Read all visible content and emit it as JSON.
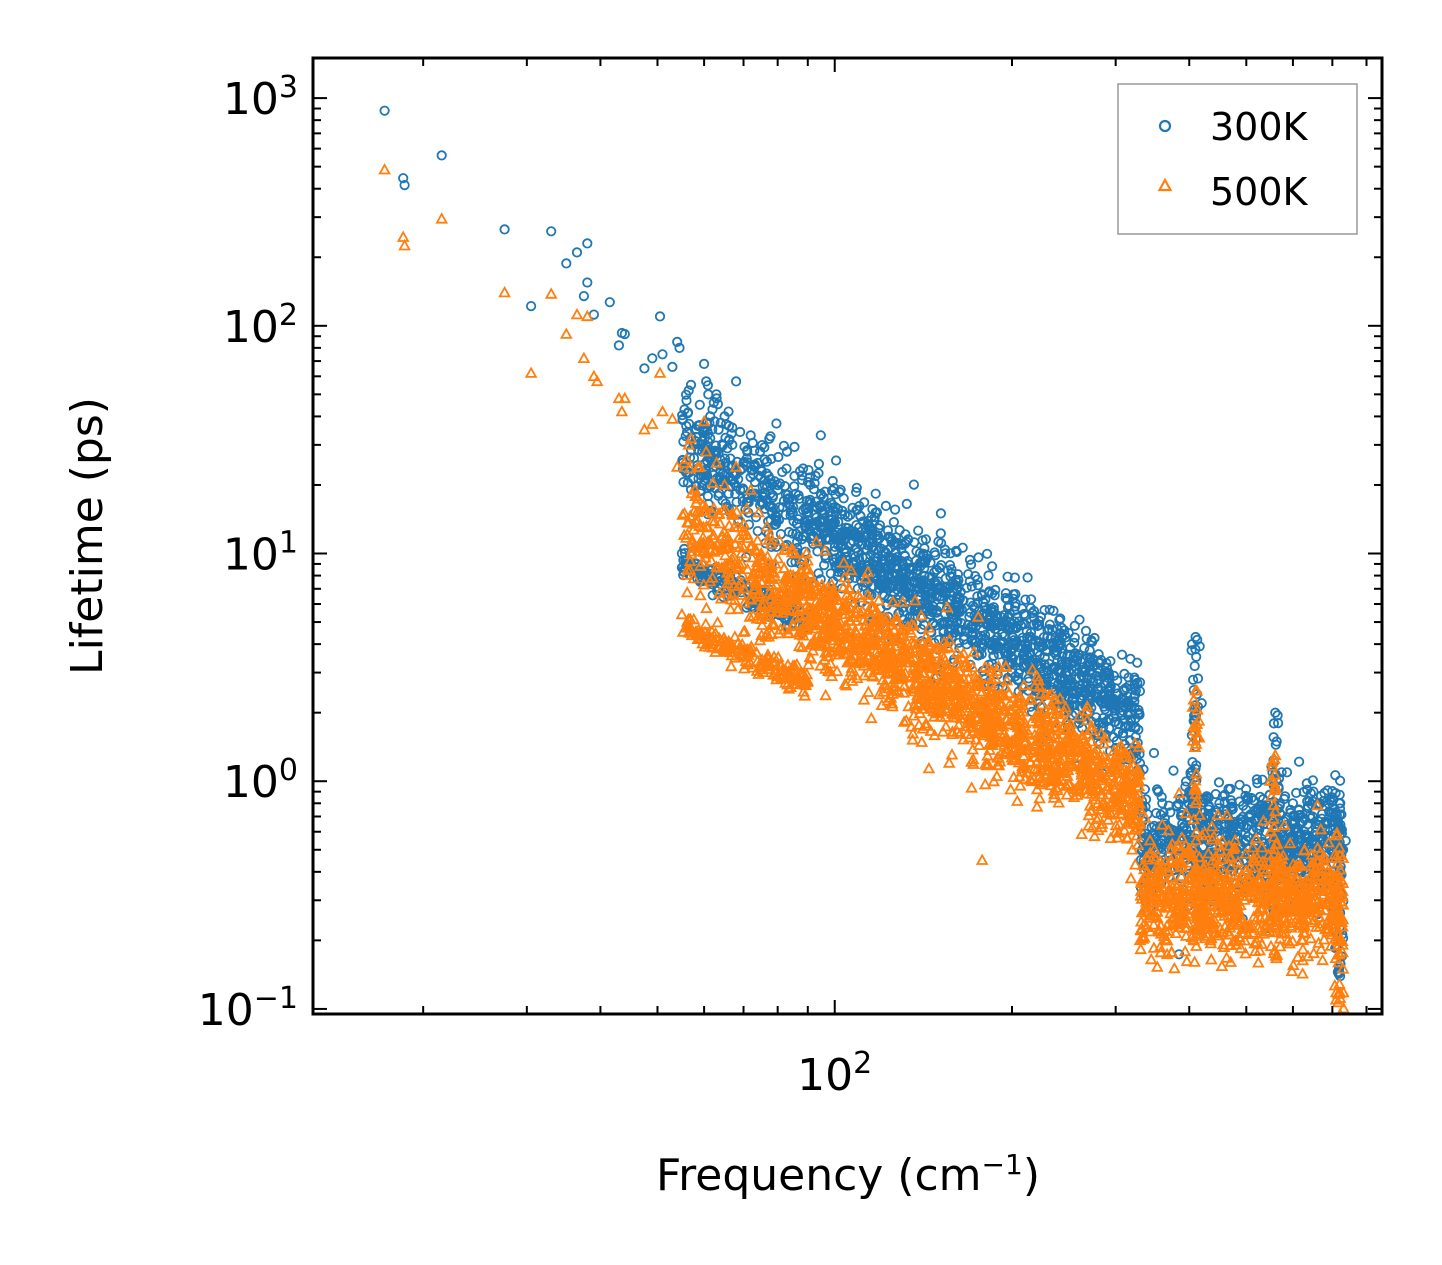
{
  "chart_data": {
    "type": "scatter",
    "title": "",
    "xlabel": "Frequency (cm",
    "xlabel_sup": "−1",
    "xlabel_tail": ")",
    "ylabel": "Lifetime (ps)",
    "xscale": "log",
    "yscale": "log",
    "xlim": [
      13,
      850
    ],
    "ylim": [
      0.095,
      1500
    ],
    "x_tick_labels": [
      {
        "value": 100,
        "base": "10",
        "exp": "2"
      }
    ],
    "y_tick_labels": [
      {
        "value": 0.1,
        "base": "10",
        "exp": "−1"
      },
      {
        "value": 1,
        "base": "10",
        "exp": "0"
      },
      {
        "value": 10,
        "base": "10",
        "exp": "1"
      },
      {
        "value": 100,
        "base": "10",
        "exp": "2"
      },
      {
        "value": 1000,
        "base": "10",
        "exp": "3"
      }
    ],
    "legend_position": "top-right",
    "series": [
      {
        "name": "300K",
        "marker": "circle",
        "color": "#1f77b4",
        "points": [
          [
            17.2,
            880
          ],
          [
            18.5,
            445
          ],
          [
            18.6,
            415
          ],
          [
            21.5,
            560
          ],
          [
            27.5,
            265
          ],
          [
            30.5,
            122
          ],
          [
            33,
            260
          ],
          [
            35,
            188
          ],
          [
            36.5,
            210
          ],
          [
            37.5,
            135
          ],
          [
            38,
            155
          ],
          [
            38,
            230
          ],
          [
            39,
            112
          ],
          [
            41.5,
            127
          ],
          [
            43,
            82
          ],
          [
            43.5,
            93
          ],
          [
            44,
            92
          ],
          [
            47.5,
            65
          ],
          [
            49,
            72
          ],
          [
            50.5,
            110
          ],
          [
            51,
            75
          ],
          [
            53,
            66
          ],
          [
            54,
            85
          ],
          [
            54.5,
            80
          ],
          [
            55,
            10
          ],
          [
            56,
            47
          ],
          [
            56.5,
            52
          ],
          [
            57,
            55
          ],
          [
            58,
            9
          ],
          [
            59,
            45
          ],
          [
            60,
            68
          ],
          [
            60.5,
            57
          ],
          [
            61,
            50
          ],
          [
            62,
            43
          ],
          [
            63,
            48
          ],
          [
            63.5,
            35
          ],
          [
            65,
            40
          ],
          [
            66,
            42
          ],
          [
            67,
            30
          ],
          [
            68,
            57
          ],
          [
            70,
            25
          ],
          [
            71,
            28
          ],
          [
            72,
            33
          ],
          [
            73,
            24
          ],
          [
            76,
            21
          ],
          [
            78,
            26
          ],
          [
            80,
            19
          ],
          [
            82,
            17
          ],
          [
            85,
            16
          ],
          [
            88,
            22
          ],
          [
            90,
            14
          ],
          [
            95,
            13
          ],
          [
            100,
            12
          ],
          [
            110,
            9.5
          ],
          [
            120,
            8
          ],
          [
            130,
            7.5
          ],
          [
            140,
            6
          ],
          [
            150,
            5.2
          ],
          [
            160,
            4.5
          ],
          [
            170,
            5.5
          ],
          [
            180,
            4.2
          ],
          [
            190,
            3.6
          ],
          [
            200,
            3
          ],
          [
            220,
            2.5
          ],
          [
            240,
            2.1
          ],
          [
            260,
            1.8
          ],
          [
            280,
            1.6
          ],
          [
            300,
            1.4
          ],
          [
            320,
            1.3
          ],
          [
            330,
            1.2
          ],
          [
            345,
            0.45
          ],
          [
            360,
            0.8
          ],
          [
            400,
            0.9
          ],
          [
            410,
            4.3
          ],
          [
            420,
            2.2
          ],
          [
            450,
            0.8
          ],
          [
            500,
            0.75
          ],
          [
            550,
            0.8
          ],
          [
            560,
            2
          ],
          [
            600,
            0.8
          ],
          [
            650,
            0.9
          ],
          [
            700,
            0.85
          ],
          [
            730,
            0.5
          ]
        ]
      },
      {
        "name": "500K",
        "marker": "triangle",
        "color": "#ff7f0e",
        "points": [
          [
            17.2,
            485
          ],
          [
            18.5,
            245
          ],
          [
            18.6,
            225
          ],
          [
            21.5,
            295
          ],
          [
            27.5,
            140
          ],
          [
            30.5,
            62
          ],
          [
            33,
            138
          ],
          [
            35,
            92
          ],
          [
            36.5,
            112
          ],
          [
            37.5,
            72
          ],
          [
            38,
            110
          ],
          [
            39,
            60
          ],
          [
            39.5,
            57
          ],
          [
            43,
            48
          ],
          [
            43.5,
            42
          ],
          [
            44,
            48
          ],
          [
            47.5,
            35
          ],
          [
            49,
            37
          ],
          [
            50.5,
            62
          ],
          [
            51,
            42
          ],
          [
            53,
            39
          ],
          [
            54,
            24
          ],
          [
            55,
            5.4
          ],
          [
            56,
            26
          ],
          [
            56.5,
            30
          ],
          [
            57,
            32
          ],
          [
            59,
            24
          ],
          [
            60,
            38
          ],
          [
            60.5,
            28
          ],
          [
            62,
            15
          ],
          [
            63,
            25
          ],
          [
            65,
            20
          ],
          [
            67,
            15
          ],
          [
            68,
            24
          ],
          [
            70,
            12
          ],
          [
            72,
            19
          ],
          [
            75,
            10
          ],
          [
            78,
            11
          ],
          [
            80,
            9.5
          ],
          [
            85,
            8
          ],
          [
            90,
            7
          ],
          [
            95,
            6
          ],
          [
            100,
            5
          ],
          [
            110,
            4
          ],
          [
            120,
            3.5
          ],
          [
            130,
            3
          ],
          [
            140,
            2.6
          ],
          [
            150,
            2.3
          ],
          [
            160,
            2
          ],
          [
            178,
            0.45
          ],
          [
            180,
            1.8
          ],
          [
            200,
            1.5
          ],
          [
            220,
            1.2
          ],
          [
            240,
            1
          ],
          [
            260,
            0.9
          ],
          [
            280,
            0.8
          ],
          [
            300,
            0.6
          ],
          [
            320,
            0.5
          ],
          [
            330,
            0.2
          ],
          [
            360,
            0.4
          ],
          [
            400,
            0.5
          ],
          [
            410,
            2.5
          ],
          [
            420,
            0.4
          ],
          [
            450,
            0.3
          ],
          [
            480,
            0.2
          ],
          [
            500,
            0.35
          ],
          [
            550,
            0.6
          ],
          [
            560,
            1.3
          ],
          [
            600,
            0.4
          ],
          [
            650,
            0.4
          ],
          [
            700,
            0.35
          ],
          [
            730,
            0.15
          ]
        ]
      }
    ]
  }
}
